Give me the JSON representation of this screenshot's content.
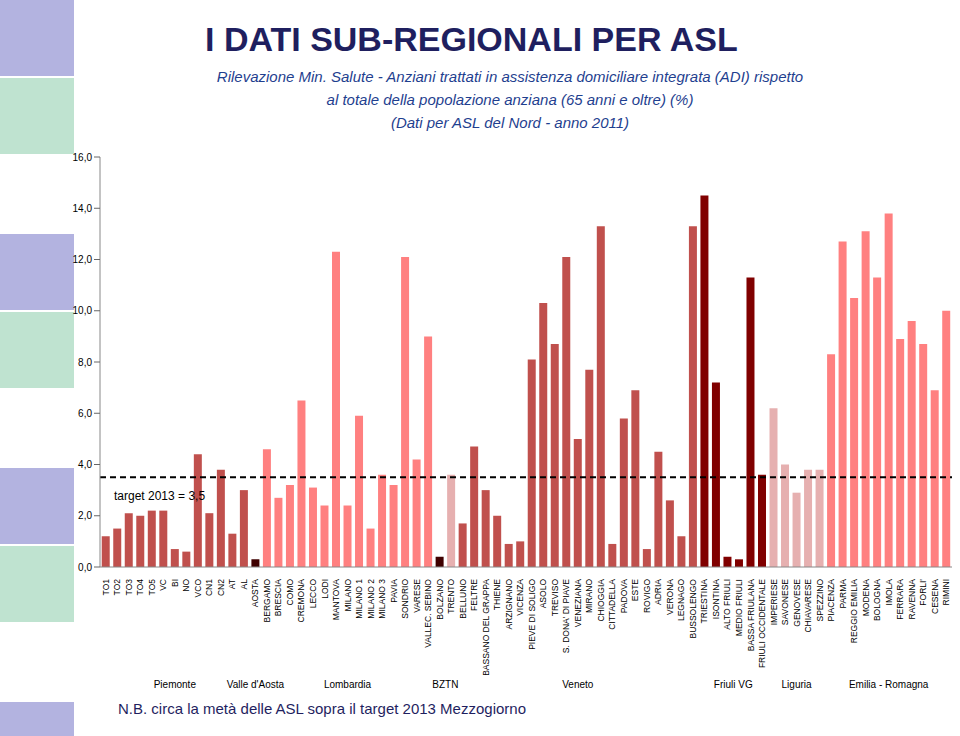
{
  "chart_data": {
    "type": "bar",
    "title": "I DATI SUB-REGIONALI PER ASL",
    "subtitle": [
      "Rilevazione Min. Salute - Anziani trattati in assistenza domiciliare integrata (ADI) rispetto",
      "al totale della popolazione anziana (65 anni e oltre) (%)",
      "(Dati per ASL del Nord - anno 2011)"
    ],
    "footnote": "N.B. circa la metà delle ASL sopra il target 2013 Mezzogiorno",
    "categories": [
      "TO1",
      "TO2",
      "TO3",
      "TO4",
      "TO5",
      "VC",
      "BI",
      "NO",
      "VCO",
      "CN1",
      "CN2",
      "AT",
      "AL",
      "AOSTA",
      "BERGAMO",
      "BRESCIA",
      "COMO",
      "CREMONA",
      "LECCO",
      "LODI",
      "MANTOVA",
      "MILANO",
      "MILANO 1",
      "MILANO 2",
      "MILANO 3",
      "PAVIA",
      "SONDRIO",
      "VARESE",
      "VALLEC. SEBINO",
      "BOLZANO",
      "TRENTO",
      "BELLUNO",
      "FELTRE",
      "BASSANO DEL GRAPPA",
      "THIENE",
      "ARZIGNANO",
      "VICENZA",
      "PIEVE DI SOLIGO",
      "ASOLO",
      "TREVISO",
      "S. DONA' DI PIAVE",
      "VENEZIANA",
      "MIRANO",
      "CHIOGGIA",
      "CITTADELLA",
      "PADOVA",
      "ESTE",
      "ROVIGO",
      "ADRIA",
      "VERONA",
      "LEGNAGO",
      "BUSSOLENGO",
      "TRIESTINA",
      "ISONTINA",
      "ALTO FRIULI",
      "MEDIO FRIULI",
      "BASSA FRIULANA",
      "FRIULI OCCIDENTALE",
      "IMPERIESE",
      "SAVONESE",
      "GENOVESE",
      "CHIAVARESE",
      "SPEZZINO",
      "PIACENZA",
      "PARMA",
      "REGGIO EMILIA",
      "MODENA",
      "BOLOGNA",
      "IMOLA",
      "FERRARA",
      "RAVENNA",
      "FORLI'",
      "CESENA",
      "RIMINI"
    ],
    "values": [
      1.2,
      1.5,
      2.1,
      2.0,
      2.2,
      2.2,
      0.7,
      0.6,
      4.4,
      2.1,
      3.8,
      1.3,
      3.0,
      0.3,
      4.6,
      2.7,
      3.2,
      6.5,
      3.1,
      2.4,
      12.3,
      2.4,
      5.9,
      1.5,
      3.6,
      3.2,
      12.1,
      4.2,
      9.0,
      0.4,
      3.6,
      1.7,
      4.7,
      3.0,
      2.0,
      0.9,
      1.0,
      8.1,
      10.3,
      8.7,
      12.1,
      5.0,
      7.7,
      13.3,
      0.9,
      5.8,
      6.9,
      0.7,
      4.5,
      2.6,
      1.2,
      13.3,
      14.5,
      7.2,
      0.4,
      0.3,
      11.3,
      3.6,
      6.2,
      4.0,
      2.9,
      3.8,
      3.8,
      8.3,
      12.7,
      10.5,
      13.1,
      11.3,
      13.8,
      8.9,
      9.6,
      8.7,
      6.9,
      10.0
    ],
    "colors": [
      "#c0504d",
      "#c0504d",
      "#c0504d",
      "#c0504d",
      "#c0504d",
      "#c0504d",
      "#c0504d",
      "#c0504d",
      "#c0504d",
      "#c0504d",
      "#c0504d",
      "#c0504d",
      "#c0504d",
      "#3f0000",
      "#ff8080",
      "#ff8080",
      "#ff8080",
      "#ff8080",
      "#ff8080",
      "#ff8080",
      "#ff8080",
      "#ff8080",
      "#ff8080",
      "#ff8080",
      "#ff8080",
      "#ff8080",
      "#ff8080",
      "#ff8080",
      "#ff8080",
      "#3f0000",
      "#e6b0b0",
      "#c0504d",
      "#c0504d",
      "#c0504d",
      "#c0504d",
      "#c0504d",
      "#c0504d",
      "#c0504d",
      "#c0504d",
      "#c0504d",
      "#c0504d",
      "#c0504d",
      "#c0504d",
      "#c0504d",
      "#c0504d",
      "#c0504d",
      "#c0504d",
      "#c0504d",
      "#c0504d",
      "#c0504d",
      "#c0504d",
      "#c0504d",
      "#800000",
      "#800000",
      "#800000",
      "#800000",
      "#800000",
      "#800000",
      "#e6b0b0",
      "#e6b0b0",
      "#e6b0b0",
      "#e6b0b0",
      "#e6b0b0",
      "#ff8080",
      "#ff8080",
      "#ff8080",
      "#ff8080",
      "#ff8080",
      "#ff8080",
      "#ff8080",
      "#ff8080",
      "#ff8080",
      "#ff8080",
      "#ff8080"
    ],
    "groups": [
      {
        "label": "Piemonte",
        "first": "TO1",
        "last": "AL"
      },
      {
        "label": "Valle d'Aosta",
        "first": "AOSTA",
        "last": "AOSTA"
      },
      {
        "label": "Lombardia",
        "first": "BERGAMO",
        "last": "VALLEC. SEBINO"
      },
      {
        "label": "BZTN",
        "first": "BOLZANO",
        "last": "TRENTO"
      },
      {
        "label": "Veneto",
        "first": "BELLUNO",
        "last": "BUSSOLENGO"
      },
      {
        "label": "Friuli VG",
        "first": "TRIESTINA",
        "last": "FRIULI OCCIDENTALE"
      },
      {
        "label": "Liguria",
        "first": "IMPERIESE",
        "last": "SPEZZINO"
      },
      {
        "label": "Emilia - Romagna",
        "first": "PIACENZA",
        "last": "RIMINI"
      }
    ],
    "reference_line": {
      "value": 3.5,
      "label": "target 2013 = 3,5"
    },
    "ylim": [
      0,
      16
    ],
    "yticks": [
      {
        "value": 0,
        "label": "0,0"
      },
      {
        "value": 2,
        "label": "2,0"
      },
      {
        "value": 4,
        "label": "4,0"
      },
      {
        "value": 6,
        "label": "6,0"
      },
      {
        "value": 8,
        "label": "8,0"
      },
      {
        "value": 10,
        "label": "10,0"
      },
      {
        "value": 12,
        "label": "12,0"
      },
      {
        "value": 14,
        "label": "14,0"
      },
      {
        "value": 16,
        "label": "16,0"
      }
    ],
    "grid": false
  }
}
